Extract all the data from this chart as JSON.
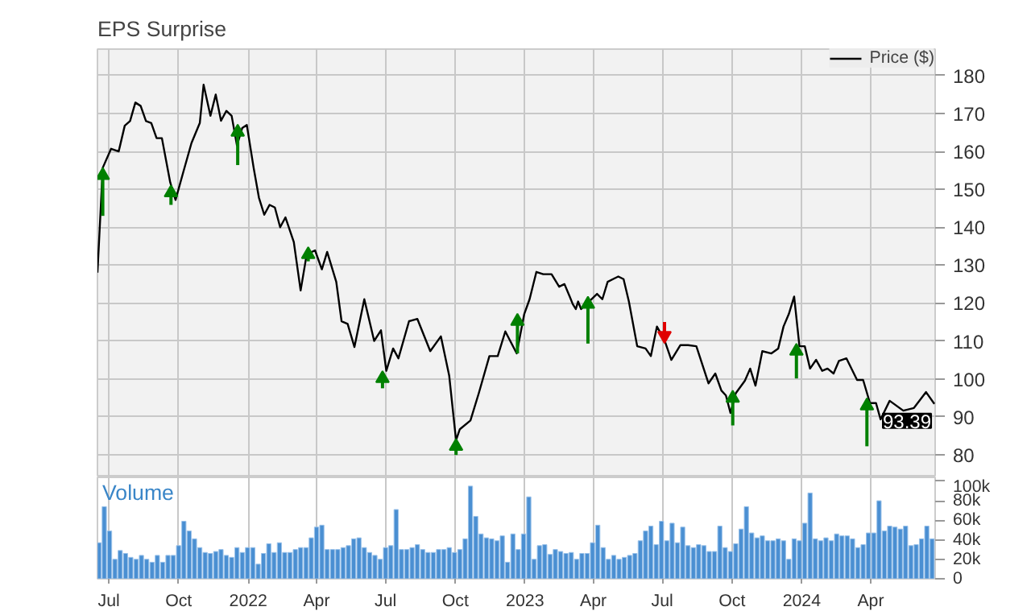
{
  "chart_data": [
    {
      "type": "line",
      "title": "EPS Surprise",
      "xlim": [
        "2021-06-16",
        "2024-06-25"
      ],
      "ylim": [
        74,
        187
      ],
      "xticks": [
        {
          "value": "2021-07-01",
          "label": null
        },
        {
          "value": "2021-10-01",
          "label": null
        },
        {
          "value": "2022-01-01",
          "label": null
        },
        {
          "value": "2022-04-01",
          "label": null
        },
        {
          "value": "2022-07-01",
          "label": null
        },
        {
          "value": "2022-10-01",
          "label": null
        },
        {
          "value": "2023-01-01",
          "label": null
        },
        {
          "value": "2023-04-01",
          "label": null
        },
        {
          "value": "2023-07-01",
          "label": null
        },
        {
          "value": "2023-10-01",
          "label": null
        },
        {
          "value": "2024-01-01",
          "label": null
        },
        {
          "value": "2024-04-01",
          "label": null
        }
      ],
      "yticks": [
        80,
        90,
        100,
        110,
        120,
        130,
        140,
        150,
        160,
        170,
        180
      ],
      "tick_labels": "y",
      "grid": true,
      "legend": "top right",
      "series": [
        {
          "name": "Price ($)",
          "type": "line",
          "color": "#000000",
          "x": [
            "2021-06-16",
            "2021-06-23",
            "2021-07-04",
            "2021-07-14",
            "2021-07-22",
            "2021-07-29",
            "2021-08-05",
            "2021-08-12",
            "2021-08-19",
            "2021-08-26",
            "2021-09-02",
            "2021-09-09",
            "2021-09-20",
            "2021-09-27",
            "2021-10-07",
            "2021-10-18",
            "2021-10-29",
            "2021-11-03",
            "2021-11-12",
            "2021-11-19",
            "2021-11-26",
            "2021-12-03",
            "2021-12-10",
            "2021-12-17",
            "2021-12-24",
            "2021-12-30",
            "2022-01-08",
            "2022-01-15",
            "2022-01-22",
            "2022-01-29",
            "2022-02-05",
            "2022-02-12",
            "2022-02-19",
            "2022-03-02",
            "2022-03-11",
            "2022-03-19",
            "2022-03-30",
            "2022-04-08",
            "2022-04-15",
            "2022-04-27",
            "2022-05-04",
            "2022-05-12",
            "2022-05-21",
            "2022-06-03",
            "2022-06-16",
            "2022-06-25",
            "2022-07-02",
            "2022-07-11",
            "2022-07-18",
            "2022-08-01",
            "2022-08-12",
            "2022-08-29",
            "2022-09-12",
            "2022-09-23",
            "2022-10-02",
            "2022-10-07",
            "2022-10-21",
            "2022-11-01",
            "2022-11-15",
            "2022-11-26",
            "2022-12-06",
            "2022-12-21",
            "2022-12-31",
            "2023-01-07",
            "2023-01-16",
            "2023-01-25",
            "2023-02-05",
            "2023-02-15",
            "2023-02-22",
            "2023-03-01",
            "2023-03-05",
            "2023-03-09",
            "2023-03-12",
            "2023-03-16",
            "2023-03-23",
            "2023-04-06",
            "2023-04-13",
            "2023-04-20",
            "2023-05-04",
            "2023-05-11",
            "2023-05-18",
            "2023-05-29",
            "2023-06-09",
            "2023-06-16",
            "2023-06-24",
            "2023-07-04",
            "2023-07-13",
            "2023-07-25",
            "2023-08-04",
            "2023-08-15",
            "2023-08-31",
            "2023-09-09",
            "2023-09-17",
            "2023-09-23",
            "2023-09-29",
            "2023-10-06",
            "2023-10-18",
            "2023-10-25",
            "2023-11-01",
            "2023-11-10",
            "2023-11-22",
            "2023-12-01",
            "2023-12-08",
            "2023-12-15",
            "2023-12-22",
            "2023-12-29",
            "2024-01-05",
            "2024-01-12",
            "2024-01-20",
            "2024-01-28",
            "2024-02-04",
            "2024-02-12",
            "2024-02-19",
            "2024-02-29",
            "2024-03-14",
            "2024-03-22",
            "2024-03-31",
            "2024-04-08",
            "2024-04-14",
            "2024-04-26",
            "2024-05-14",
            "2024-05-28",
            "2024-06-13",
            "2024-06-24"
          ],
          "values": [
            128,
            155.7,
            160.7,
            160,
            166.8,
            168,
            172.9,
            172,
            168,
            167.5,
            163.5,
            163.5,
            151.8,
            147.2,
            154.4,
            162.2,
            167.5,
            177.6,
            169.4,
            175,
            168.1,
            170.7,
            169.4,
            161.6,
            166.2,
            167,
            155.7,
            147.8,
            143.3,
            145.9,
            145.2,
            140,
            142.6,
            136.1,
            123.3,
            132.8,
            133.9,
            128.9,
            133.5,
            125.6,
            115.2,
            114.5,
            108.4,
            121,
            110,
            112.8,
            102.1,
            108,
            105.4,
            115.2,
            115.8,
            107.3,
            111.2,
            100.8,
            83.8,
            86.7,
            89,
            96.2,
            106,
            106,
            112.5,
            106.7,
            117.1,
            121,
            128.2,
            127.6,
            127.6,
            124.3,
            125,
            121.7,
            119.7,
            118.4,
            120.4,
            118.4,
            119.7,
            122.4,
            121,
            125.6,
            127,
            126.3,
            120.4,
            108.6,
            108,
            106,
            113.8,
            110.2,
            105,
            108.9,
            108.9,
            108.6,
            98.8,
            101.4,
            96.9,
            95.6,
            91,
            96.2,
            99.5,
            102.7,
            98.2,
            107.3,
            106.7,
            108,
            113.8,
            117.1,
            121.7,
            108.6,
            108.6,
            102.7,
            105,
            102.1,
            102.7,
            101.4,
            104.7,
            105.4,
            99.7,
            99.7,
            93.6,
            93.6,
            89.3,
            94.2,
            91.6,
            92.3,
            96.5,
            93.39
          ]
        },
        {
          "type": "scatter",
          "marker": "triangle",
          "color": "#008000",
          "x": [
            "2021-06-23",
            "2021-09-21",
            "2021-12-18",
            "2022-03-21",
            "2022-06-27",
            "2022-10-02",
            "2022-12-22",
            "2023-03-25",
            "2023-10-02",
            "2023-12-25",
            "2024-03-27"
          ],
          "values": [
            153.7,
            149.1,
            165.1,
            132.8,
            100.1,
            82.2,
            115.2,
            119.7,
            94.9,
            107.3,
            92.9
          ],
          "errors": [
            [
              143,
              153.7
            ],
            [
              145.9,
              149.1
            ],
            [
              156.4,
              165.1
            ],
            [
              131,
              132.8
            ],
            [
              97.5,
              100.1
            ],
            [
              79.9,
              82.2
            ],
            [
              106.7,
              115.2
            ],
            [
              109.3,
              119.7
            ],
            [
              87.7,
              94.9
            ],
            [
              100.1,
              107.3
            ],
            [
              82.2,
              92.9
            ]
          ]
        },
        {
          "type": "scatter",
          "marker": "triangle",
          "color": "#e00000",
          "x": [
            "2023-07-04"
          ],
          "values": [
            111.4
          ],
          "errors": [
            [
              111.4,
              115
            ]
          ]
        }
      ],
      "annotations": [
        {
          "text": "93.39",
          "x": "2024-06-24",
          "y": 93.39
        }
      ]
    },
    {
      "type": "bar",
      "title": "Volume",
      "xlim": [
        "2021-06-16",
        "2024-06-25"
      ],
      "ylim": [
        0,
        104
      ],
      "xticks": [
        {
          "value": "2021-07-01",
          "label": "Jul"
        },
        {
          "value": "2021-10-01",
          "label": "Oct"
        },
        {
          "value": "2022-01-01",
          "label": "2022"
        },
        {
          "value": "2022-04-01",
          "label": "Apr"
        },
        {
          "value": "2022-07-01",
          "label": "Jul"
        },
        {
          "value": "2022-10-01",
          "label": "Oct"
        },
        {
          "value": "2023-01-01",
          "label": "2023"
        },
        {
          "value": "2023-04-01",
          "label": "Apr"
        },
        {
          "value": "2023-07-01",
          "label": "Jul"
        },
        {
          "value": "2023-10-01",
          "label": "Oct"
        },
        {
          "value": "2024-01-01",
          "label": "2024"
        },
        {
          "value": "2024-04-01",
          "label": "Apr"
        }
      ],
      "yticks": [
        {
          "value": 0,
          "label": "0"
        },
        {
          "value": 20,
          "label": "20k"
        },
        {
          "value": 40,
          "label": "40k"
        },
        {
          "value": 60,
          "label": "60k"
        },
        {
          "value": 80,
          "label": "80k"
        },
        {
          "value": 100,
          "label": "100k"
        }
      ],
      "grid": "x",
      "series": [
        {
          "color": "#4a8fd2",
          "x": [
            "2021-06-18",
            "2021-06-25",
            "2021-07-02",
            "2021-07-09",
            "2021-07-16",
            "2021-07-23",
            "2021-07-30",
            "2021-08-06",
            "2021-08-13",
            "2021-08-20",
            "2021-08-27",
            "2021-09-03",
            "2021-09-10",
            "2021-09-17",
            "2021-09-24",
            "2021-10-01",
            "2021-10-08",
            "2021-10-15",
            "2021-10-22",
            "2021-10-29",
            "2021-11-05",
            "2021-11-12",
            "2021-11-19",
            "2021-11-26",
            "2021-12-03",
            "2021-12-10",
            "2021-12-17",
            "2021-12-24",
            "2021-12-31",
            "2022-01-07",
            "2022-01-14",
            "2022-01-21",
            "2022-01-28",
            "2022-02-04",
            "2022-02-11",
            "2022-02-18",
            "2022-02-25",
            "2022-03-04",
            "2022-03-11",
            "2022-03-18",
            "2022-03-25",
            "2022-04-01",
            "2022-04-08",
            "2022-04-15",
            "2022-04-22",
            "2022-04-29",
            "2022-05-06",
            "2022-05-13",
            "2022-05-20",
            "2022-05-27",
            "2022-06-03",
            "2022-06-10",
            "2022-06-17",
            "2022-06-24",
            "2022-07-01",
            "2022-07-08",
            "2022-07-15",
            "2022-07-22",
            "2022-07-29",
            "2022-08-05",
            "2022-08-12",
            "2022-08-19",
            "2022-08-26",
            "2022-09-02",
            "2022-09-09",
            "2022-09-16",
            "2022-09-23",
            "2022-09-30",
            "2022-10-07",
            "2022-10-14",
            "2022-10-21",
            "2022-10-28",
            "2022-11-04",
            "2022-11-11",
            "2022-11-18",
            "2022-11-25",
            "2022-12-02",
            "2022-12-09",
            "2022-12-16",
            "2022-12-23",
            "2022-12-30",
            "2023-01-06",
            "2023-01-13",
            "2023-01-20",
            "2023-01-27",
            "2023-02-03",
            "2023-02-10",
            "2023-02-17",
            "2023-02-24",
            "2023-03-03",
            "2023-03-10",
            "2023-03-17",
            "2023-03-24",
            "2023-03-31",
            "2023-04-07",
            "2023-04-14",
            "2023-04-21",
            "2023-04-28",
            "2023-05-05",
            "2023-05-12",
            "2023-05-19",
            "2023-05-26",
            "2023-06-02",
            "2023-06-09",
            "2023-06-16",
            "2023-06-23",
            "2023-06-30",
            "2023-07-07",
            "2023-07-14",
            "2023-07-21",
            "2023-07-28",
            "2023-08-04",
            "2023-08-11",
            "2023-08-18",
            "2023-08-25",
            "2023-09-01",
            "2023-09-08",
            "2023-09-15",
            "2023-09-22",
            "2023-09-29",
            "2023-10-06",
            "2023-10-13",
            "2023-10-20",
            "2023-10-27",
            "2023-11-03",
            "2023-11-10",
            "2023-11-17",
            "2023-11-24",
            "2023-12-01",
            "2023-12-08",
            "2023-12-15",
            "2023-12-22",
            "2023-12-29",
            "2024-01-05",
            "2024-01-12",
            "2024-01-19",
            "2024-01-26",
            "2024-02-02",
            "2024-02-09",
            "2024-02-16",
            "2024-02-23",
            "2024-03-01",
            "2024-03-08",
            "2024-03-15",
            "2024-03-22",
            "2024-03-29",
            "2024-04-05",
            "2024-04-12",
            "2024-04-19",
            "2024-04-26",
            "2024-05-03",
            "2024-05-10",
            "2024-05-17",
            "2024-05-24",
            "2024-05-31",
            "2024-06-07",
            "2024-06-14",
            "2024-06-21"
          ],
          "values": [
            37,
            74,
            49,
            20,
            29,
            26,
            22,
            20,
            24,
            20,
            17,
            24,
            17,
            24,
            24,
            34,
            59,
            49,
            41,
            32,
            27,
            26,
            28,
            30,
            24,
            22,
            32,
            27,
            32,
            32,
            15,
            26,
            36,
            27,
            37,
            27,
            27,
            30,
            32,
            32,
            42,
            53,
            55,
            30,
            30,
            30,
            32,
            34,
            41,
            42,
            32,
            27,
            24,
            20,
            32,
            34,
            71,
            30,
            30,
            32,
            35,
            30,
            27,
            27,
            30,
            30,
            32,
            27,
            30,
            41,
            95,
            64,
            46,
            42,
            41,
            39,
            44,
            17,
            46,
            30,
            46,
            84,
            20,
            34,
            35,
            25,
            30,
            28,
            26,
            27,
            20,
            26,
            26,
            37,
            55,
            32,
            20,
            24,
            20,
            22,
            24,
            26,
            39,
            49,
            54,
            35,
            59,
            39,
            57,
            37,
            53,
            34,
            32,
            35,
            34,
            28,
            28,
            54,
            32,
            28,
            36,
            51,
            74,
            47,
            42,
            44,
            39,
            39,
            41,
            39,
            20,
            41,
            39,
            57,
            88,
            41,
            39,
            42,
            39,
            46,
            44,
            44,
            41,
            32,
            35,
            47,
            47,
            80,
            49,
            54,
            53,
            51,
            54,
            34,
            35,
            41,
            54,
            41
          ]
        }
      ]
    }
  ]
}
